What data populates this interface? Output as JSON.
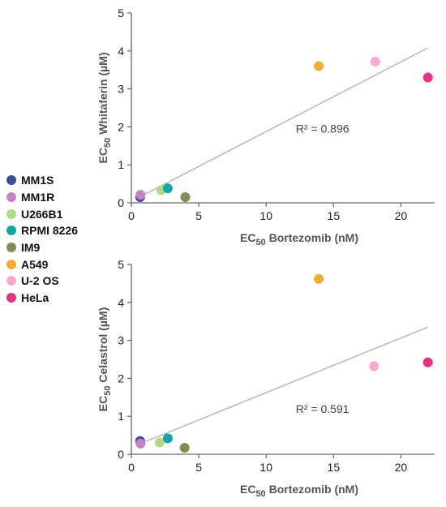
{
  "legend": [
    {
      "label": "MM1S",
      "color": "#3a4f8f"
    },
    {
      "label": "MM1R",
      "color": "#c185c3"
    },
    {
      "label": "U266B1",
      "color": "#b4d88a"
    },
    {
      "label": "RPMI 8226",
      "color": "#16a6a8"
    },
    {
      "label": "IM9",
      "color": "#7f8c57"
    },
    {
      "label": "A549",
      "color": "#f4ad34"
    },
    {
      "label": "U-2 OS",
      "color": "#f6aad1"
    },
    {
      "label": "HeLa",
      "color": "#e5337f"
    }
  ],
  "chart_data": [
    {
      "type": "scatter",
      "xlabel_main": "EC",
      "xlabel_sub": "50",
      "xlabel_rest": " Bortezomib (nM)",
      "ylabel_main": "EC",
      "ylabel_sub": "50",
      "ylabel_rest": " Whitaferin (µM)",
      "xlim": [
        0,
        22.5
      ],
      "ylim": [
        0,
        5
      ],
      "xticks": [
        0,
        5,
        10,
        15,
        20
      ],
      "yticks": [
        0,
        1,
        2,
        3,
        4,
        5
      ],
      "annotation": "R² = 0.896",
      "trendline": {
        "x": [
          0.6,
          22.0
        ],
        "y": [
          0.15,
          4.08
        ]
      },
      "points": [
        {
          "name": "MM1S",
          "x": 0.65,
          "y": 0.15
        },
        {
          "name": "MM1R",
          "x": 0.68,
          "y": 0.21
        },
        {
          "name": "U266B1",
          "x": 2.2,
          "y": 0.33
        },
        {
          "name": "RPMI 8226",
          "x": 2.7,
          "y": 0.38
        },
        {
          "name": "IM9",
          "x": 4.0,
          "y": 0.15
        },
        {
          "name": "A549",
          "x": 13.9,
          "y": 3.6
        },
        {
          "name": "U-2 OS",
          "x": 18.1,
          "y": 3.72
        },
        {
          "name": "HeLa",
          "x": 22.0,
          "y": 3.3
        }
      ]
    },
    {
      "type": "scatter",
      "xlabel_main": "EC",
      "xlabel_sub": "50",
      "xlabel_rest": " Bortezomib (nM)",
      "ylabel_main": "EC",
      "ylabel_sub": "50",
      "ylabel_rest": " Celastrol (µM)",
      "xlim": [
        0,
        22.5
      ],
      "ylim": [
        0,
        5
      ],
      "xticks": [
        0,
        5,
        10,
        15,
        20
      ],
      "yticks": [
        0,
        1,
        2,
        3,
        4,
        5
      ],
      "annotation": "R² = 0.591",
      "trendline": {
        "x": [
          0.6,
          22.0
        ],
        "y": [
          0.27,
          3.35
        ]
      },
      "points": [
        {
          "name": "MM1S",
          "x": 0.65,
          "y": 0.35
        },
        {
          "name": "MM1R",
          "x": 0.68,
          "y": 0.28
        },
        {
          "name": "U266B1",
          "x": 2.1,
          "y": 0.31
        },
        {
          "name": "RPMI 8226",
          "x": 2.7,
          "y": 0.42
        },
        {
          "name": "IM9",
          "x": 3.95,
          "y": 0.17
        },
        {
          "name": "A549",
          "x": 13.9,
          "y": 4.62
        },
        {
          "name": "U-2 OS",
          "x": 18.0,
          "y": 2.32
        },
        {
          "name": "HeLa",
          "x": 22.0,
          "y": 2.42
        }
      ]
    }
  ]
}
